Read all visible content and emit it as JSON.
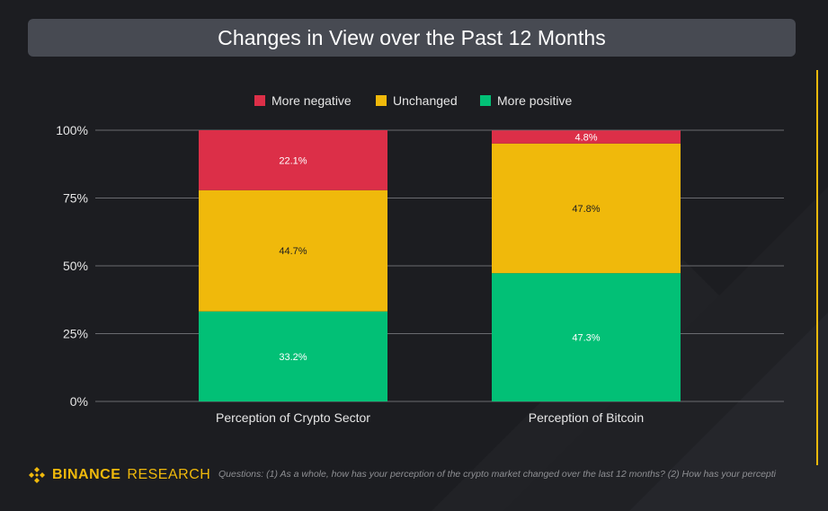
{
  "header": {
    "title": "Changes in View over the Past 12 Months"
  },
  "chart_data": {
    "type": "bar",
    "stacked": true,
    "title": "Changes in View over the Past 12 Months",
    "categories": [
      "Perception of Crypto Sector",
      "Perception of Bitcoin"
    ],
    "series": [
      {
        "name": "More positive",
        "values": [
          33.2,
          47.3
        ],
        "color": "#02c076",
        "label_color": "#ffffff"
      },
      {
        "name": "Unchanged",
        "values": [
          44.7,
          47.8
        ],
        "color": "#f0b90b",
        "label_color": "#1c1d21"
      },
      {
        "name": "More negative",
        "values": [
          22.1,
          4.8
        ],
        "color": "#dc2f48",
        "label_color": "#ffffff"
      }
    ],
    "legend_order": [
      "More negative",
      "Unchanged",
      "More positive"
    ],
    "legend_position": "top",
    "yticks": [
      "0%",
      "25%",
      "50%",
      "75%",
      "100%"
    ],
    "ylim": [
      0,
      100
    ],
    "xlabel": "",
    "ylabel": ""
  },
  "footer": {
    "brand": "BINANCE",
    "brand_suffix": "RESEARCH",
    "note": "Questions: (1) As a whole, how has your perception of the crypto market changed over the last 12 months? (2) How has your percepti"
  },
  "colors": {
    "accent": "#f0b90b",
    "background": "#1c1d21",
    "title_bar": "#474a52"
  }
}
